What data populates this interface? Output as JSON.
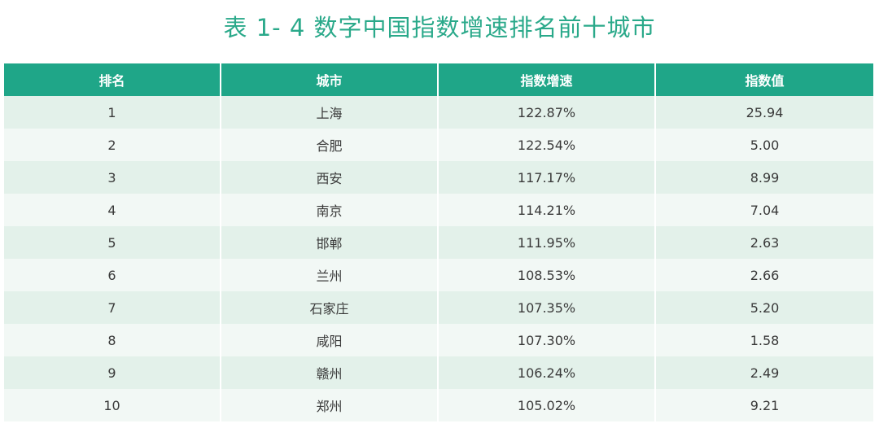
{
  "title": "表 1- 4  数字中国指数增速排名前十城市",
  "table": {
    "headers": [
      "排名",
      "城市",
      "指数增速",
      "指数值"
    ],
    "rows": [
      [
        "1",
        "上海",
        "122.87%",
        "25.94"
      ],
      [
        "2",
        "合肥",
        "122.54%",
        "5.00"
      ],
      [
        "3",
        "西安",
        "117.17%",
        "8.99"
      ],
      [
        "4",
        "南京",
        "114.21%",
        "7.04"
      ],
      [
        "5",
        "邯郸",
        "111.95%",
        "2.63"
      ],
      [
        "6",
        "兰州",
        "108.53%",
        "2.66"
      ],
      [
        "7",
        "石家庄",
        "107.35%",
        "5.20"
      ],
      [
        "8",
        "咸阳",
        "107.30%",
        "1.58"
      ],
      [
        "9",
        "赣州",
        "106.24%",
        "2.49"
      ],
      [
        "10",
        "郑州",
        "105.02%",
        "9.21"
      ]
    ]
  },
  "colors": {
    "title": "#2aa98a",
    "header_bg": "#1fa688",
    "row_odd": "#e3f1ea",
    "row_even": "#f2f8f5"
  }
}
